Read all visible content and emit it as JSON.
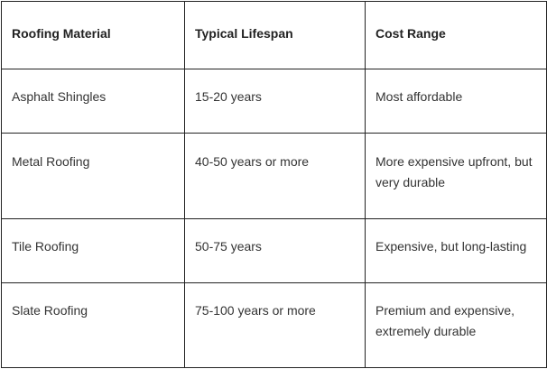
{
  "table": {
    "headers": [
      "Roofing Material",
      "Typical Lifespan",
      "Cost Range"
    ],
    "rows": [
      [
        "Asphalt Shingles",
        "15-20 years",
        "Most affordable"
      ],
      [
        "Metal Roofing",
        "40-50 years or more",
        "More expensive upfront, but very durable"
      ],
      [
        "Tile Roofing",
        "50-75 years",
        "Expensive, but long-lasting"
      ],
      [
        "Slate Roofing",
        "75-100 years or more",
        "Premium and expensive, extremely durable"
      ]
    ]
  }
}
